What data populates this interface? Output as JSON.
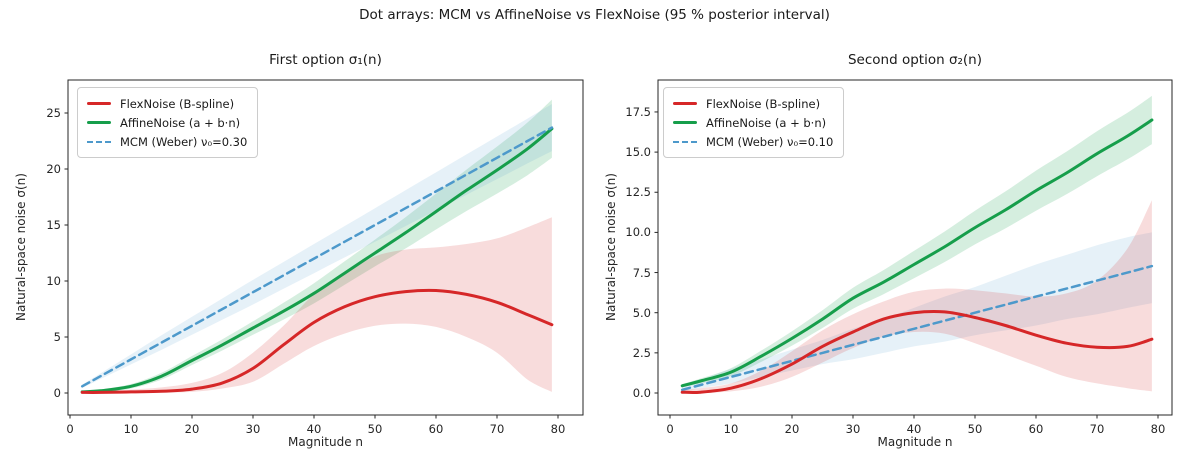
{
  "figure": {
    "title": "Dot arrays: MCM vs AffineNoise vs FlexNoise (95 % posterior interval)"
  },
  "colors": {
    "flexnoise": "#d62728",
    "affinenoise": "#169e4b",
    "mcm": "#4d99cb",
    "flexnoise_band": "rgba(214,39,40,0.16)",
    "affinenoise_band": "rgba(22,158,75,0.18)",
    "mcm_band": "rgba(77,153,203,0.14)",
    "spine": "#262626",
    "text": "#262626"
  },
  "chart_data": [
    {
      "type": "line",
      "title": "First option  σ₁(n)",
      "xlabel": "Magnitude  n",
      "ylabel": "Natural-space noise  σ(n)",
      "xlim": [
        -0.3,
        84.1
      ],
      "ylim": [
        -2.0,
        27.9
      ],
      "xticks": [
        {
          "v": 0,
          "t": "0"
        },
        {
          "v": 10,
          "t": "10"
        },
        {
          "v": 20,
          "t": "20"
        },
        {
          "v": 30,
          "t": "30"
        },
        {
          "v": 40,
          "t": "40"
        },
        {
          "v": 50,
          "t": "50"
        },
        {
          "v": 60,
          "t": "60"
        },
        {
          "v": 70,
          "t": "70"
        },
        {
          "v": 80,
          "t": "80"
        }
      ],
      "yticks": [
        {
          "v": 0,
          "t": "0"
        },
        {
          "v": 5,
          "t": "5"
        },
        {
          "v": 10,
          "t": "10"
        },
        {
          "v": 15,
          "t": "15"
        },
        {
          "v": 20,
          "t": "20"
        },
        {
          "v": 25,
          "t": "25"
        }
      ],
      "x": [
        2,
        5,
        10,
        15,
        20,
        25,
        30,
        35,
        40,
        45,
        50,
        55,
        60,
        65,
        70,
        75,
        79
      ],
      "series": [
        {
          "name": "FlexNoise (B-spline)",
          "style": "solid",
          "color_key": "flexnoise",
          "band_key": "flexnoise_band",
          "mean": [
            0.05,
            0.05,
            0.1,
            0.15,
            0.35,
            0.9,
            2.2,
            4.3,
            6.3,
            7.7,
            8.6,
            9.05,
            9.15,
            8.8,
            8.1,
            7.0,
            6.1
          ],
          "lo": [
            0.0,
            0.0,
            0.0,
            0.05,
            0.1,
            0.4,
            1.0,
            2.6,
            4.2,
            5.3,
            6.0,
            6.2,
            5.9,
            5.0,
            3.6,
            1.2,
            0.1
          ],
          "hi": [
            0.15,
            0.15,
            0.3,
            0.5,
            0.9,
            1.8,
            3.6,
            6.0,
            8.8,
            10.6,
            12.2,
            12.8,
            13.0,
            13.3,
            13.8,
            14.8,
            15.7
          ]
        },
        {
          "name": "AffineNoise (a + b·n)",
          "style": "solid",
          "color_key": "affinenoise",
          "band_key": "affinenoise_band",
          "mean": [
            0.1,
            0.2,
            0.6,
            1.5,
            2.9,
            4.3,
            5.8,
            7.3,
            8.9,
            10.7,
            12.5,
            14.3,
            16.2,
            18.1,
            19.9,
            21.8,
            23.6
          ],
          "lo": [
            0.0,
            0.08,
            0.4,
            1.2,
            2.5,
            3.8,
            5.2,
            6.55,
            8.0,
            9.65,
            11.3,
            12.9,
            14.6,
            16.25,
            17.8,
            19.45,
            21.0
          ],
          "hi": [
            0.2,
            0.32,
            0.8,
            1.8,
            3.3,
            4.8,
            6.4,
            8.05,
            9.8,
            11.75,
            13.7,
            15.7,
            17.8,
            19.95,
            22.0,
            24.15,
            26.2
          ]
        },
        {
          "name": "MCM (Weber)  ν₀=0.30",
          "style": "dashed",
          "color_key": "mcm",
          "band_key": "mcm_band",
          "mean": [
            0.6,
            1.5,
            3.0,
            4.5,
            6.0,
            7.5,
            9.0,
            10.5,
            12.0,
            13.5,
            15.0,
            16.5,
            18.0,
            19.5,
            21.0,
            22.5,
            23.7
          ],
          "lo": [
            0.45,
            1.25,
            2.55,
            3.85,
            5.2,
            6.55,
            7.9,
            9.3,
            10.7,
            12.1,
            13.5,
            14.9,
            16.3,
            17.7,
            19.1,
            20.5,
            21.6
          ],
          "hi": [
            0.75,
            1.75,
            3.45,
            5.15,
            6.8,
            8.45,
            10.1,
            11.7,
            13.3,
            14.9,
            16.5,
            18.1,
            19.7,
            21.3,
            22.9,
            24.5,
            25.8
          ]
        }
      ]
    },
    {
      "type": "line",
      "title": "Second option  σ₂(n)",
      "xlabel": "Magnitude  n",
      "ylabel": "Natural-space noise  σ(n)",
      "xlim": [
        -2.0,
        82.3
      ],
      "ylim": [
        -1.4,
        19.5
      ],
      "xticks": [
        {
          "v": 0,
          "t": "0"
        },
        {
          "v": 10,
          "t": "10"
        },
        {
          "v": 20,
          "t": "20"
        },
        {
          "v": 30,
          "t": "30"
        },
        {
          "v": 40,
          "t": "40"
        },
        {
          "v": 50,
          "t": "50"
        },
        {
          "v": 60,
          "t": "60"
        },
        {
          "v": 70,
          "t": "70"
        },
        {
          "v": 80,
          "t": "80"
        }
      ],
      "yticks": [
        {
          "v": 0,
          "t": "0.0"
        },
        {
          "v": 2.5,
          "t": "2.5"
        },
        {
          "v": 5,
          "t": "5.0"
        },
        {
          "v": 7.5,
          "t": "7.5"
        },
        {
          "v": 10,
          "t": "10.0"
        },
        {
          "v": 12.5,
          "t": "12.5"
        },
        {
          "v": 15,
          "t": "15.0"
        },
        {
          "v": 17.5,
          "t": "17.5"
        }
      ],
      "x": [
        2,
        5,
        10,
        15,
        20,
        25,
        30,
        35,
        40,
        45,
        50,
        55,
        60,
        65,
        70,
        75,
        79
      ],
      "series": [
        {
          "name": "FlexNoise (B-spline)",
          "style": "solid",
          "color_key": "flexnoise",
          "band_key": "flexnoise_band",
          "mean": [
            0.05,
            0.05,
            0.3,
            0.9,
            1.8,
            2.9,
            3.8,
            4.6,
            5.0,
            5.05,
            4.7,
            4.2,
            3.6,
            3.1,
            2.85,
            2.9,
            3.35
          ],
          "lo": [
            0.0,
            0.0,
            0.1,
            0.4,
            1.0,
            1.9,
            2.8,
            3.5,
            3.8,
            3.7,
            3.1,
            2.4,
            1.7,
            1.0,
            0.6,
            0.3,
            0.1
          ],
          "hi": [
            0.2,
            0.3,
            0.6,
            1.4,
            2.6,
            3.9,
            4.9,
            5.7,
            6.3,
            6.5,
            6.4,
            6.2,
            6.0,
            6.2,
            7.0,
            9.0,
            12.0
          ]
        },
        {
          "name": "AffineNoise (a + b·n)",
          "style": "solid",
          "color_key": "affinenoise",
          "band_key": "affinenoise_band",
          "mean": [
            0.45,
            0.75,
            1.3,
            2.3,
            3.4,
            4.6,
            5.9,
            6.9,
            8.0,
            9.1,
            10.3,
            11.4,
            12.6,
            13.7,
            14.9,
            16.0,
            17.0
          ],
          "lo": [
            0.35,
            0.6,
            1.05,
            1.95,
            2.95,
            4.05,
            5.25,
            6.15,
            7.15,
            8.15,
            9.25,
            10.25,
            11.35,
            12.37,
            13.5,
            14.55,
            15.5
          ],
          "hi": [
            0.55,
            0.9,
            1.55,
            2.65,
            3.85,
            5.15,
            6.55,
            7.65,
            8.85,
            10.05,
            11.35,
            12.55,
            13.85,
            15.03,
            16.3,
            17.45,
            18.5
          ]
        },
        {
          "name": "MCM (Weber)  ν₀=0.10",
          "style": "dashed",
          "color_key": "mcm",
          "band_key": "mcm_band",
          "mean": [
            0.2,
            0.5,
            1.0,
            1.5,
            2.0,
            2.5,
            3.0,
            3.5,
            4.0,
            4.5,
            5.0,
            5.5,
            6.0,
            6.5,
            7.0,
            7.5,
            7.9
          ],
          "lo": [
            0.1,
            0.3,
            0.6,
            1.0,
            1.4,
            1.8,
            2.1,
            2.5,
            2.9,
            3.2,
            3.6,
            3.9,
            4.2,
            4.6,
            4.9,
            5.3,
            5.6
          ],
          "hi": [
            0.35,
            0.8,
            1.5,
            2.1,
            2.7,
            3.3,
            4.0,
            4.6,
            5.3,
            6.0,
            6.6,
            7.3,
            8.0,
            8.6,
            9.2,
            9.7,
            10.0
          ]
        }
      ]
    }
  ]
}
